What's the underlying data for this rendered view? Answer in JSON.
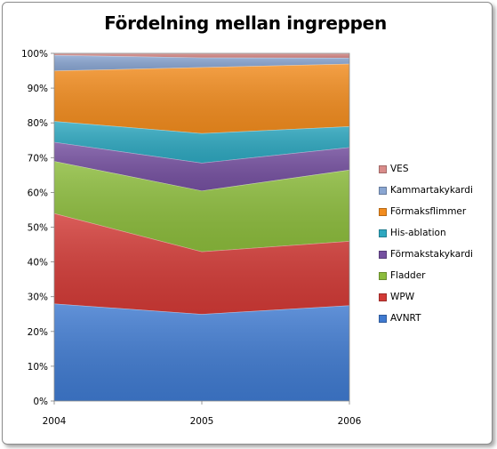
{
  "chart_data": {
    "type": "area",
    "stacked": true,
    "percent": true,
    "title": "Fördelning mellan ingreppen",
    "categories": [
      "2004",
      "2005",
      "2006"
    ],
    "ylim": [
      0,
      100
    ],
    "yticks": [
      "0%",
      "10%",
      "20%",
      "30%",
      "40%",
      "50%",
      "60%",
      "70%",
      "80%",
      "90%",
      "100%"
    ],
    "grid": false,
    "legend_position": "right",
    "series": [
      {
        "name": "AVNRT",
        "color": "#3f7ad0",
        "values": [
          28,
          25,
          27.5
        ]
      },
      {
        "name": "WPW",
        "color": "#d23a36",
        "values": [
          26,
          18,
          18.5
        ]
      },
      {
        "name": "Fladder",
        "color": "#8cbc3c",
        "values": [
          15,
          17.5,
          20.5
        ]
      },
      {
        "name": "Förmakstakykardi",
        "color": "#7550a0",
        "values": [
          5.5,
          8,
          6.5
        ]
      },
      {
        "name": "His-ablation",
        "color": "#2ea8c0",
        "values": [
          6,
          8.5,
          6
        ]
      },
      {
        "name": "Förmaksflimmer",
        "color": "#f28c1e",
        "values": [
          14.5,
          19,
          18
        ]
      },
      {
        "name": "Kammartakykardi",
        "color": "#8aa6d2",
        "values": [
          4.5,
          2.8,
          1.7
        ]
      },
      {
        "name": "VES",
        "color": "#d98c8a",
        "values": [
          0.5,
          1.2,
          1.3
        ]
      }
    ]
  }
}
